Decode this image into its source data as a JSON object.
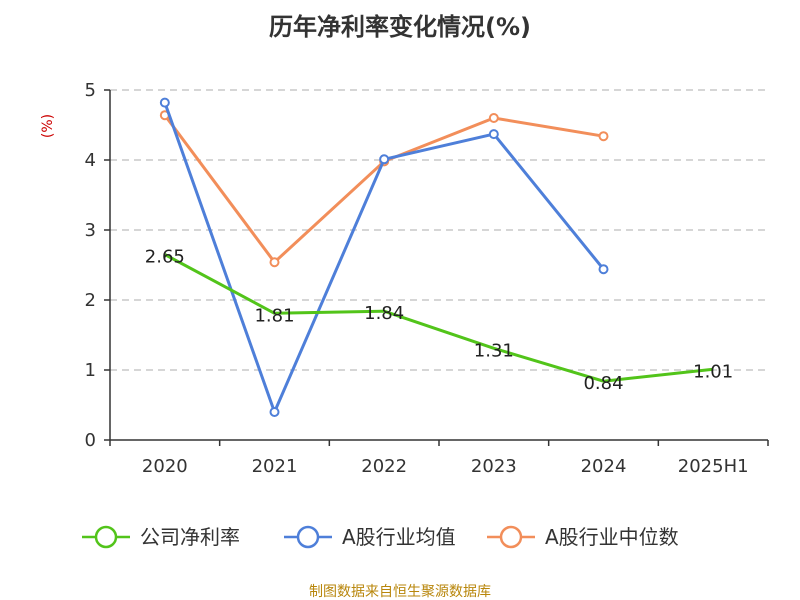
{
  "chart_data": {
    "type": "line",
    "title": "历年净利率变化情况(%)",
    "ylabel": "(%)",
    "xlabel": "",
    "categories": [
      "2020",
      "2021",
      "2022",
      "2023",
      "2024",
      "2025H1"
    ],
    "ylim": [
      0,
      5
    ],
    "yticks": [
      0,
      1,
      2,
      3,
      4,
      5
    ],
    "grid": true,
    "legend_position": "bottom",
    "series": [
      {
        "name": "公司净利率",
        "color": "#52c41a",
        "values": [
          2.65,
          1.81,
          1.84,
          1.31,
          0.84,
          1.01
        ],
        "labels": [
          "2.65",
          "1.81",
          "1.84",
          "1.31",
          "0.84",
          "1.01"
        ],
        "show_markers": false
      },
      {
        "name": "A股行业均值",
        "color": "#4e7fd9",
        "values": [
          4.82,
          0.4,
          4.01,
          4.37,
          2.44,
          null
        ],
        "show_markers": true
      },
      {
        "name": "A股行业中位数",
        "color": "#f28e5a",
        "values": [
          4.64,
          2.54,
          3.98,
          4.6,
          4.34,
          null
        ],
        "show_markers": true
      }
    ]
  },
  "source": "制图数据来自恒生聚源数据库"
}
